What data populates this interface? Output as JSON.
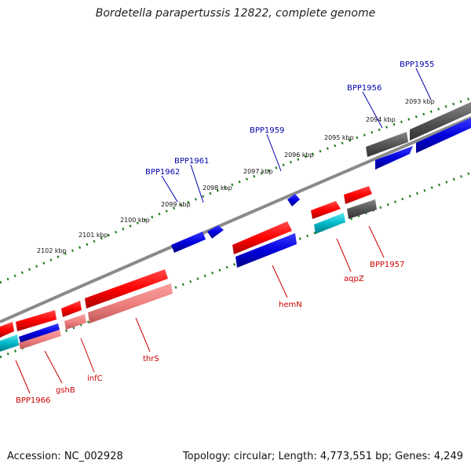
{
  "title": "Bordetella parapertussis 12822, complete genome",
  "footer": {
    "accession": "Accession: NC_002928",
    "summary": "Topology: circular; Length: 4,773,551 bp; Genes: 4,249"
  },
  "colors": {
    "forward_gene": "#ff0000",
    "forward_gene_light": "#f08080",
    "reverse_gene": "#0000dd",
    "other_gene": "#555555",
    "rna_gene": "#00b8c8",
    "backbone": "#8a8a8a",
    "ticks": "#1a7a1a",
    "label_top": "#0000aa",
    "label_bottom": "#cc0000"
  },
  "kbp_labels": [
    "2093 kbp",
    "2094 kbp",
    "2095 kbp",
    "2096 kbp",
    "2097 kbp",
    "2098 kbp",
    "2099 kbp",
    "2100 kbp",
    "2101 kbp",
    "2102 kbp"
  ],
  "gene_labels_top": [
    "BPP1955",
    "BPP1956",
    "BPP1959",
    "BPP1961",
    "BPP1962"
  ],
  "gene_labels_bottom": [
    "BPP1957",
    "aqpZ",
    "hemN",
    "thrS",
    "infC",
    "gshB",
    "BPP1966"
  ]
}
